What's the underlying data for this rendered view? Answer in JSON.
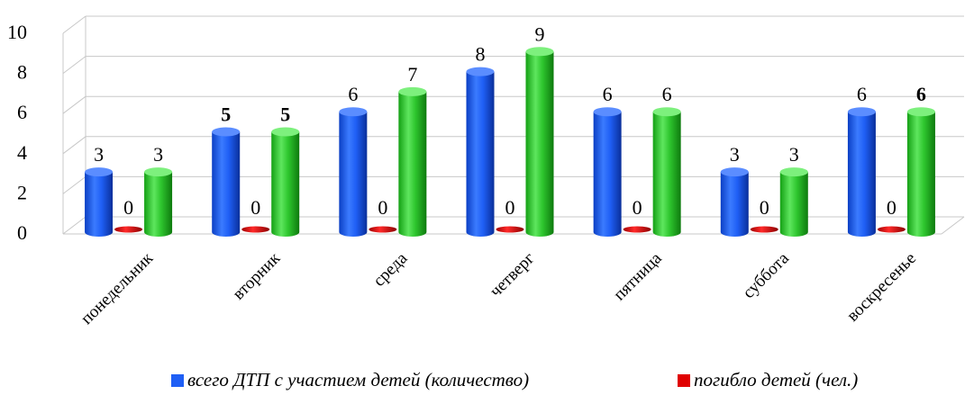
{
  "chart_data": {
    "type": "bar",
    "categories": [
      "понедельник",
      "вторник",
      "среда",
      "четверг",
      "пятница",
      "суббота",
      "воскресенье"
    ],
    "series": [
      {
        "name": "всего ДТП с участием детей (количество)",
        "color": "#1f5ff5",
        "values": [
          3,
          5,
          6,
          8,
          6,
          3,
          6
        ],
        "bold_labels": [
          false,
          true,
          false,
          false,
          false,
          false,
          false
        ]
      },
      {
        "name": "погибло детей (чел.)",
        "color": "#e00000",
        "values": [
          0,
          0,
          0,
          0,
          0,
          0,
          0
        ],
        "bold_labels": [
          false,
          false,
          false,
          false,
          false,
          false,
          false
        ]
      },
      {
        "name": "",
        "color": "#2ec62e",
        "values": [
          3,
          5,
          7,
          9,
          6,
          3,
          6
        ],
        "bold_labels": [
          false,
          true,
          false,
          false,
          false,
          false,
          true
        ]
      }
    ],
    "yticks": [
      0,
      2,
      4,
      6,
      8,
      10
    ],
    "ylim": [
      0,
      10
    ],
    "grid": true,
    "style": "3d-cylinder",
    "legend_position": "bottom"
  }
}
